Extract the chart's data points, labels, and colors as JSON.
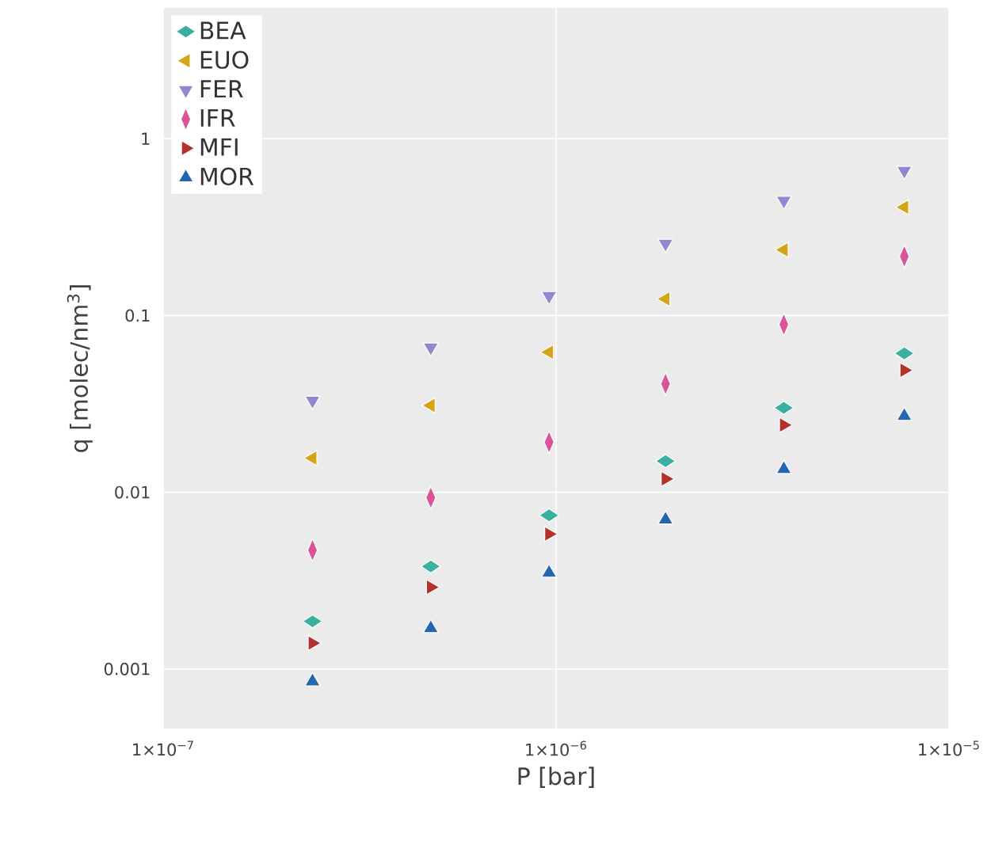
{
  "chart_data": {
    "type": "scatter",
    "xlabel": "P [bar]",
    "ylabel": "q [molec/nm$^{3}$]",
    "log": "xy",
    "grid": true,
    "legend": "top left",
    "x": [
      2.4e-07,
      4.8e-07,
      9.6e-07,
      1.9e-06,
      3.8e-06,
      7.7e-06
    ],
    "xlim": [
      1e-07,
      1e-05
    ],
    "xticks": [
      {
        "value": 1e-07,
        "label": "1×10$^{−7}$"
      },
      {
        "value": 1e-06,
        "label": "1×10$^{−6}$"
      },
      {
        "value": 1e-05,
        "label": "1×10$^{−5}$"
      }
    ],
    "ylim": [
      0.00046,
      5.5
    ],
    "yticks": [
      0.001,
      0.01,
      0.1,
      1
    ],
    "series": [
      {
        "name": "BEA",
        "color": "#3bb0a0",
        "marker": "diamond-wide",
        "values": [
          0.00186,
          0.0038,
          0.0074,
          0.015,
          0.03,
          0.061
        ]
      },
      {
        "name": "EUO",
        "color": "#d4a517",
        "marker": "triangle-left",
        "values": [
          0.0156,
          0.031,
          0.062,
          0.124,
          0.235,
          0.41
        ]
      },
      {
        "name": "FER",
        "color": "#9385cf",
        "marker": "triangle-down",
        "values": [
          0.033,
          0.066,
          0.129,
          0.255,
          0.446,
          0.66
        ]
      },
      {
        "name": "IFR",
        "color": "#d9559a",
        "marker": "diamond-tall",
        "values": [
          0.0047,
          0.0093,
          0.0192,
          0.041,
          0.089,
          0.216
        ]
      },
      {
        "name": "MFI",
        "color": "#b5312b",
        "marker": "triangle-right",
        "values": [
          0.0014,
          0.0029,
          0.0058,
          0.0119,
          0.024,
          0.049
        ]
      },
      {
        "name": "MOR",
        "color": "#2466b0",
        "marker": "triangle-up",
        "values": [
          0.00085,
          0.0017,
          0.0035,
          0.007,
          0.0135,
          0.027
        ]
      }
    ]
  }
}
